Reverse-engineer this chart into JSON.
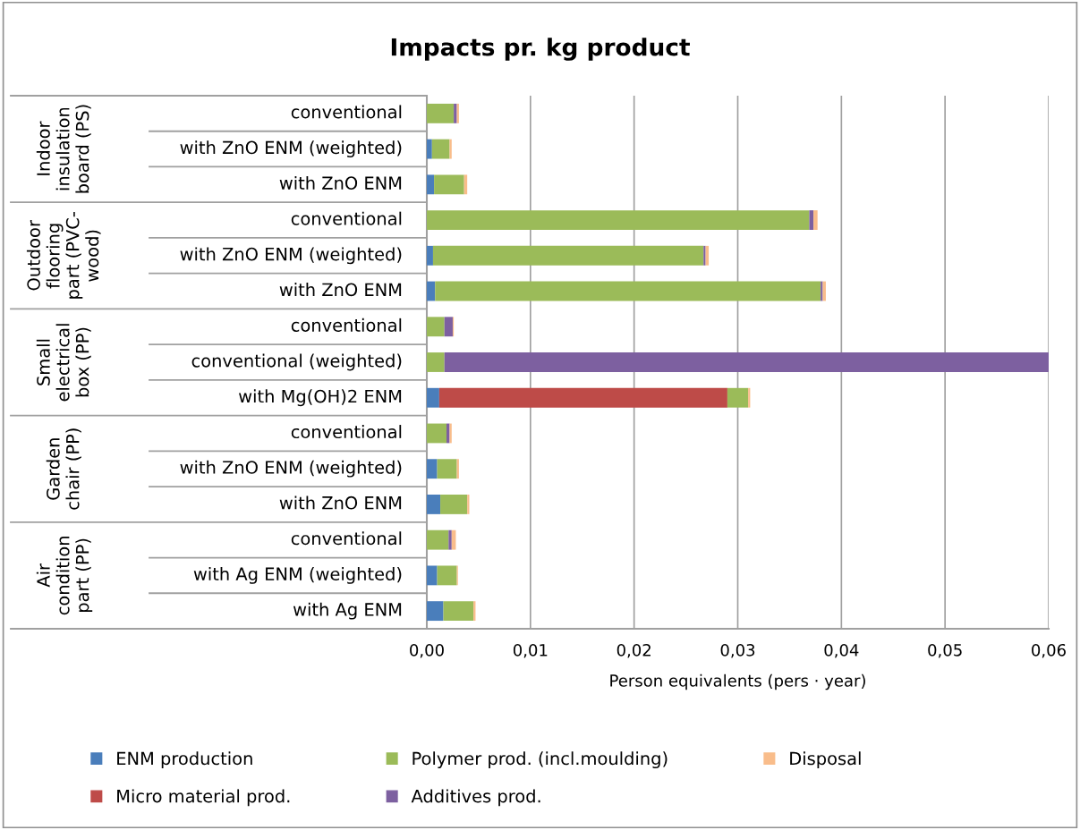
{
  "chart_data": {
    "type": "bar",
    "orientation": "horizontal",
    "stacked": true,
    "title": "Impacts pr. kg product",
    "xlabel": "Person equivalents (pers · year)",
    "categories": [
      "conventional",
      "with ZnO ENM (weighted)",
      "with ZnO ENM",
      "conventional",
      "with ZnO ENM (weighted)",
      "with ZnO ENM",
      "conventional",
      "conventional (weighted)",
      "with Mg(OH)2 ENM",
      "conventional",
      "with ZnO ENM (weighted)",
      "with ZnO ENM",
      "conventional",
      "with Ag ENM (weighted)",
      "with Ag ENM"
    ],
    "series": [
      {
        "name": "ENM production",
        "color": "#4a7ebb",
        "values": [
          0,
          0.0005,
          0.0007,
          0,
          0.0006,
          0.0008,
          0,
          0,
          0.0012,
          0,
          0.001,
          0.0013,
          0,
          0.001,
          0.0016
        ]
      },
      {
        "name": "Micro material prod.",
        "color": "#be4b48",
        "values": [
          0,
          0,
          0,
          0,
          0,
          0,
          0,
          0,
          0.0278,
          0,
          0,
          0,
          0,
          0,
          0
        ]
      },
      {
        "name": "Polymer prod. (incl.moulding)",
        "color": "#9bbb59",
        "values": [
          0.0026,
          0.0017,
          0.0029,
          0.0369,
          0.0261,
          0.0372,
          0.0017,
          0.0017,
          0.002,
          0.0019,
          0.0019,
          0.0026,
          0.0021,
          0.0019,
          0.0029
        ]
      },
      {
        "name": "Additives prod.",
        "color": "#7d60a0",
        "values": [
          0.0003,
          0,
          0,
          0.0004,
          0.0002,
          0.0002,
          0.0008,
          0.0583,
          0,
          0.0003,
          0,
          0,
          0.0003,
          0,
          0
        ]
      },
      {
        "name": "Disposal",
        "color": "#f9bd8b",
        "values": [
          0.0002,
          0.0002,
          0.0003,
          0.0004,
          0.0003,
          0.0003,
          0.0001,
          0,
          0.0002,
          0.0002,
          0.0002,
          0.0002,
          0.0004,
          0.0001,
          0.0002
        ]
      }
    ],
    "xlim": [
      0,
      0.06
    ],
    "xticks": [
      {
        "value": 0,
        "label": "0,00"
      },
      {
        "value": 0.01,
        "label": "0,01"
      },
      {
        "value": 0.02,
        "label": "0,02"
      },
      {
        "value": 0.03,
        "label": "0,03"
      },
      {
        "value": 0.04,
        "label": "0,04"
      },
      {
        "value": 0.05,
        "label": "0,05"
      },
      {
        "value": 0.06,
        "label": "0,06"
      }
    ],
    "annotations": [
      "Indoor\ninsulation\nboard (PS)",
      "Outdoor\nflooring\npart (PVC-\nwood)",
      "Small\nelectrical\nbox (PP)",
      "Garden\nchair (PP)",
      "Air\ncondition\npart (PP)"
    ],
    "grid": "x",
    "legend": "bottom"
  }
}
